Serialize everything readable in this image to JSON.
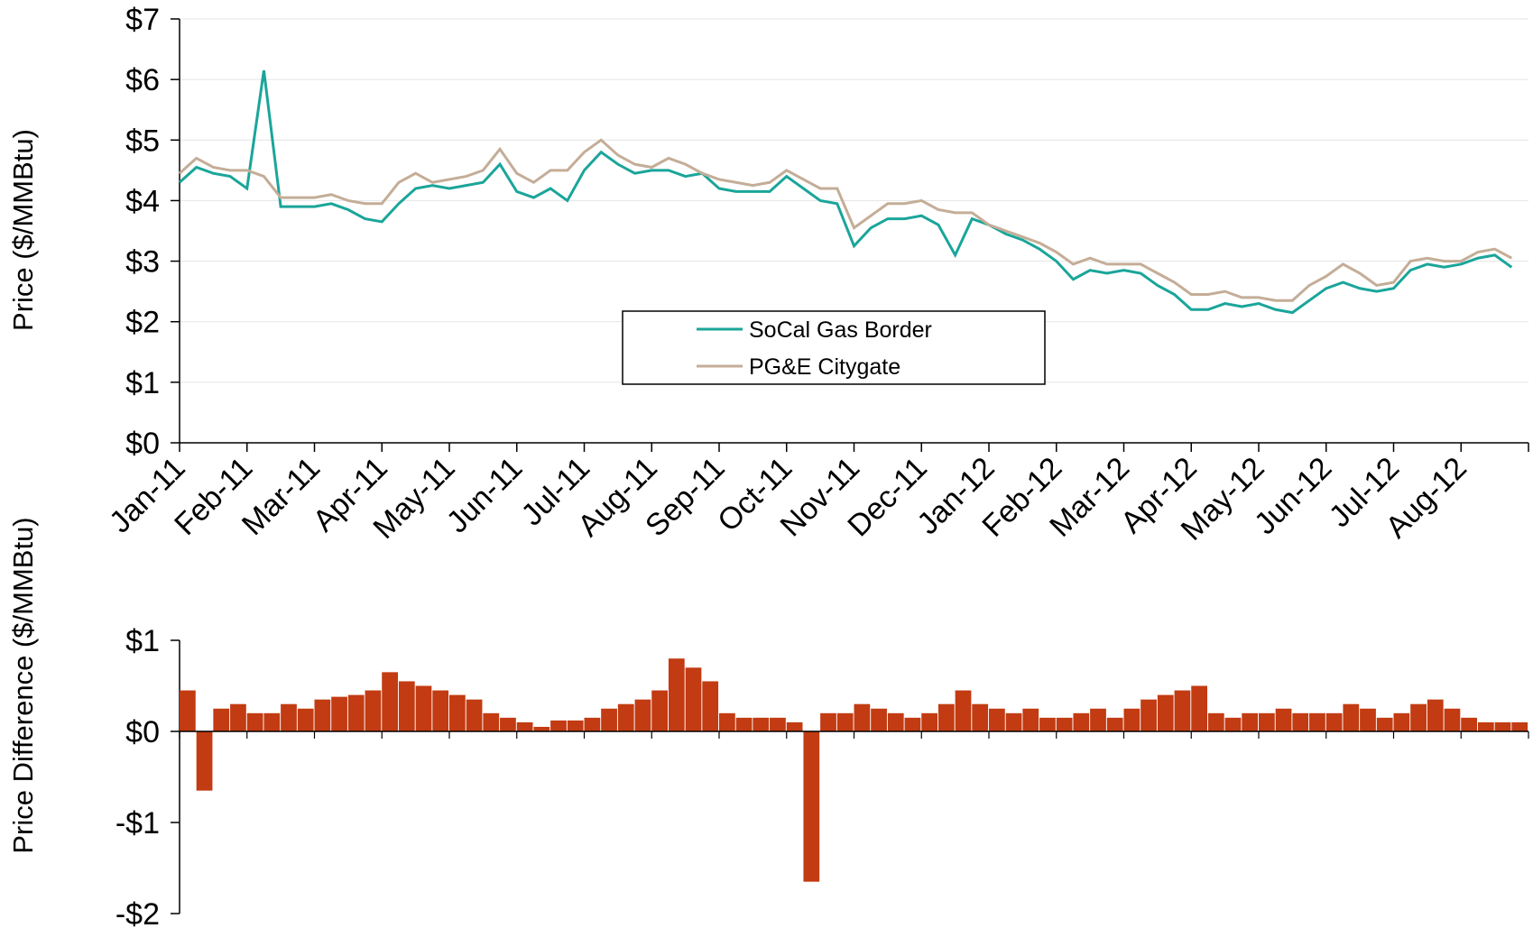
{
  "chart_data": [
    {
      "type": "line",
      "y_label": "Price ($/MMBtu)",
      "x": [
        0,
        0.25,
        0.5,
        0.75,
        1,
        1.25,
        1.5,
        1.75,
        2,
        2.25,
        2.5,
        2.75,
        3,
        3.25,
        3.5,
        3.75,
        4,
        4.25,
        4.5,
        4.75,
        5,
        5.25,
        5.5,
        5.75,
        6,
        6.25,
        6.5,
        6.75,
        7,
        7.25,
        7.5,
        7.75,
        8,
        8.25,
        8.5,
        8.75,
        9,
        9.25,
        9.5,
        9.75,
        10,
        10.25,
        10.5,
        10.75,
        11,
        11.25,
        11.5,
        11.75,
        12,
        12.25,
        12.5,
        12.75,
        13,
        13.25,
        13.5,
        13.75,
        14,
        14.25,
        14.5,
        14.75,
        15,
        15.25,
        15.5,
        15.75,
        16,
        16.25,
        16.5,
        16.75,
        17,
        17.25,
        17.5,
        17.75,
        18,
        18.25,
        18.5,
        18.75,
        19,
        19.25,
        19.5,
        19.75
      ],
      "xlim": [
        0,
        20
      ],
      "xticks": [
        {
          "value": 0,
          "label": "Jan-11"
        },
        {
          "value": 1,
          "label": "Feb-11"
        },
        {
          "value": 2,
          "label": "Mar-11"
        },
        {
          "value": 3,
          "label": "Apr-11"
        },
        {
          "value": 4,
          "label": "May-11"
        },
        {
          "value": 5,
          "label": "Jun-11"
        },
        {
          "value": 6,
          "label": "Jul-11"
        },
        {
          "value": 7,
          "label": "Aug-11"
        },
        {
          "value": 8,
          "label": "Sep-11"
        },
        {
          "value": 9,
          "label": "Oct-11"
        },
        {
          "value": 10,
          "label": "Nov-11"
        },
        {
          "value": 11,
          "label": "Dec-11"
        },
        {
          "value": 12,
          "label": "Jan-12"
        },
        {
          "value": 13,
          "label": "Feb-12"
        },
        {
          "value": 14,
          "label": "Mar-12"
        },
        {
          "value": 15,
          "label": "Apr-12"
        },
        {
          "value": 16,
          "label": "May-12"
        },
        {
          "value": 17,
          "label": "Jun-12"
        },
        {
          "value": 18,
          "label": "Jul-12"
        },
        {
          "value": 19,
          "label": "Aug-12"
        }
      ],
      "ylim": [
        0,
        7
      ],
      "yticks": [
        {
          "value": 0,
          "label": "$0"
        },
        {
          "value": 1,
          "label": "$1"
        },
        {
          "value": 2,
          "label": "$2"
        },
        {
          "value": 3,
          "label": "$3"
        },
        {
          "value": 4,
          "label": "$4"
        },
        {
          "value": 5,
          "label": "$5"
        },
        {
          "value": 6,
          "label": "$6"
        },
        {
          "value": 7,
          "label": "$7"
        }
      ],
      "grid": true,
      "series": [
        {
          "name": "SoCal Gas Border",
          "color": "#1aa59a",
          "values": [
            4.3,
            4.55,
            4.45,
            4.4,
            4.2,
            6.15,
            3.9,
            3.9,
            3.9,
            3.95,
            3.85,
            3.7,
            3.65,
            3.95,
            4.2,
            4.25,
            4.2,
            4.25,
            4.3,
            4.6,
            4.15,
            4.05,
            4.2,
            4.0,
            4.5,
            4.8,
            4.6,
            4.45,
            4.5,
            4.5,
            4.4,
            4.45,
            4.2,
            4.15,
            4.15,
            4.15,
            4.4,
            4.2,
            4.0,
            3.95,
            3.25,
            3.55,
            3.7,
            3.7,
            3.75,
            3.6,
            3.1,
            3.7,
            3.6,
            3.45,
            3.35,
            3.2,
            3.0,
            2.7,
            2.85,
            2.8,
            2.85,
            2.8,
            2.6,
            2.45,
            2.2,
            2.2,
            2.3,
            2.25,
            2.3,
            2.2,
            2.15,
            2.35,
            2.55,
            2.65,
            2.55,
            2.5,
            2.55,
            2.85,
            2.95,
            2.9,
            2.95,
            3.05,
            3.1,
            2.9
          ]
        },
        {
          "name": "PG&E Citygate",
          "color": "#c4ad97",
          "values": [
            4.45,
            4.7,
            4.55,
            4.5,
            4.5,
            4.4,
            4.05,
            4.05,
            4.05,
            4.1,
            4.0,
            3.95,
            3.95,
            4.3,
            4.45,
            4.3,
            4.35,
            4.4,
            4.5,
            4.85,
            4.45,
            4.3,
            4.5,
            4.5,
            4.8,
            5.0,
            4.75,
            4.6,
            4.55,
            4.7,
            4.6,
            4.45,
            4.35,
            4.3,
            4.25,
            4.3,
            4.5,
            4.35,
            4.2,
            4.2,
            3.55,
            3.75,
            3.95,
            3.95,
            4.0,
            3.85,
            3.8,
            3.8,
            3.6,
            3.5,
            3.4,
            3.3,
            3.15,
            2.95,
            3.05,
            2.95,
            2.95,
            2.95,
            2.8,
            2.65,
            2.45,
            2.45,
            2.5,
            2.4,
            2.4,
            2.35,
            2.35,
            2.6,
            2.75,
            2.95,
            2.8,
            2.6,
            2.65,
            3.0,
            3.05,
            3.0,
            3.0,
            3.15,
            3.2,
            3.05
          ]
        }
      ]
    },
    {
      "type": "bar",
      "y_label": "Price Difference ($/MMBtu)",
      "color": "#c23b12",
      "x": [
        0,
        0.25,
        0.5,
        0.75,
        1,
        1.25,
        1.5,
        1.75,
        2,
        2.25,
        2.5,
        2.75,
        3,
        3.25,
        3.5,
        3.75,
        4,
        4.25,
        4.5,
        4.75,
        5,
        5.25,
        5.5,
        5.75,
        6,
        6.25,
        6.5,
        6.75,
        7,
        7.25,
        7.5,
        7.75,
        8,
        8.25,
        8.5,
        8.75,
        9,
        9.25,
        9.5,
        9.75,
        10,
        10.25,
        10.5,
        10.75,
        11,
        11.25,
        11.5,
        11.75,
        12,
        12.25,
        12.5,
        12.75,
        13,
        13.25,
        13.5,
        13.75,
        14,
        14.25,
        14.5,
        14.75,
        15,
        15.25,
        15.5,
        15.75,
        16,
        16.25,
        16.5,
        16.75,
        17,
        17.25,
        17.5,
        17.75,
        18,
        18.25,
        18.5,
        18.75,
        19,
        19.25,
        19.5,
        19.75
      ],
      "xlim": [
        0,
        20
      ],
      "ylim": [
        -2,
        1
      ],
      "yticks": [
        {
          "value": 1,
          "label": "$1"
        },
        {
          "value": 0,
          "label": "$0"
        },
        {
          "value": -1,
          "label": "-$1"
        },
        {
          "value": -2,
          "label": "-$2"
        }
      ],
      "grid": false,
      "values": [
        0.45,
        -0.65,
        0.25,
        0.3,
        0.2,
        0.2,
        0.3,
        0.25,
        0.35,
        0.38,
        0.4,
        0.45,
        0.65,
        0.55,
        0.5,
        0.45,
        0.4,
        0.35,
        0.2,
        0.15,
        0.1,
        0.05,
        0.12,
        0.12,
        0.15,
        0.25,
        0.3,
        0.35,
        0.45,
        0.8,
        0.7,
        0.55,
        0.2,
        0.15,
        0.15,
        0.15,
        0.1,
        -1.65,
        0.2,
        0.2,
        0.3,
        0.25,
        0.2,
        0.15,
        0.2,
        0.3,
        0.45,
        0.3,
        0.25,
        0.2,
        0.25,
        0.15,
        0.15,
        0.2,
        0.25,
        0.15,
        0.25,
        0.35,
        0.4,
        0.45,
        0.5,
        0.2,
        0.15,
        0.2,
        0.2,
        0.25,
        0.2,
        0.2,
        0.2,
        0.3,
        0.25,
        0.15,
        0.2,
        0.3,
        0.35,
        0.25,
        0.15,
        0.1,
        0.1,
        0.1
      ]
    }
  ]
}
